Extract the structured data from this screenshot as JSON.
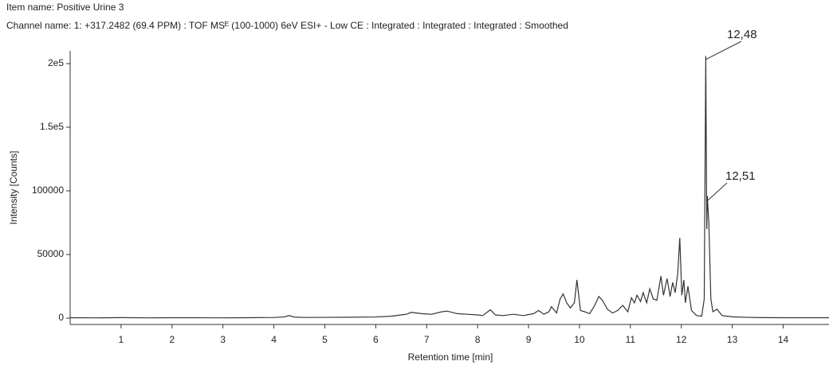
{
  "chart_data": {
    "type": "line",
    "title": "Item name: Positive Urine 3",
    "subtitle": "Channel name: 1: +317.2482 (69.4 PPM) : TOF MSᴱ (100-1000) 6eV ESI+ - Low CE : Integrated : Integrated : Integrated : Smoothed",
    "x_label": "Retention time [min]",
    "y_label": "Intensity [Counts]",
    "xlim": [
      0,
      14.9
    ],
    "ylim": [
      -5000,
      210000
    ],
    "xticks": [
      1,
      2,
      3,
      4,
      5,
      6,
      7,
      8,
      9,
      10,
      11,
      12,
      13,
      14
    ],
    "yticks": [
      0,
      50000,
      100000,
      {
        "value": 150000,
        "label": "1.5e5"
      },
      {
        "value": 200000,
        "label": "2e5"
      }
    ],
    "grid": false,
    "annotations": [
      "12,48",
      "12,51"
    ],
    "x": [
      0,
      0.5,
      1,
      1.5,
      2,
      2.5,
      3,
      3.5,
      4,
      4.2,
      4.3,
      4.4,
      4.6,
      5,
      5.5,
      6,
      6.3,
      6.6,
      6.7,
      6.9,
      7.1,
      7.3,
      7.4,
      7.6,
      7.8,
      8,
      8.1,
      8.25,
      8.35,
      8.5,
      8.7,
      8.9,
      9.1,
      9.2,
      9.3,
      9.4,
      9.45,
      9.55,
      9.62,
      9.68,
      9.75,
      9.82,
      9.9,
      9.95,
      10.02,
      10.1,
      10.2,
      10.3,
      10.38,
      10.45,
      10.55,
      10.65,
      10.75,
      10.85,
      10.95,
      11.02,
      11.08,
      11.13,
      11.2,
      11.25,
      11.32,
      11.38,
      11.45,
      11.52,
      11.6,
      11.65,
      11.72,
      11.78,
      11.83,
      11.88,
      11.93,
      11.97,
      12.01,
      12.05,
      12.08,
      12.13,
      12.2,
      12.3,
      12.4,
      12.45,
      12.48,
      12.5,
      12.51,
      12.54,
      12.58,
      12.62,
      12.7,
      12.8,
      13,
      13.3,
      13.6,
      14,
      14.5,
      14.9
    ],
    "series": [
      {
        "color": "#333333",
        "values": [
          300,
          200,
          400,
          200,
          300,
          300,
          200,
          300,
          500,
          900,
          2000,
          800,
          500,
          600,
          700,
          900,
          1500,
          3000,
          4500,
          3500,
          3000,
          5000,
          5500,
          3500,
          3000,
          2500,
          2000,
          6500,
          2500,
          2000,
          3000,
          2000,
          3500,
          6000,
          3000,
          5000,
          9000,
          4000,
          15000,
          19000,
          12000,
          8000,
          12000,
          30000,
          6000,
          5000,
          3500,
          10000,
          17000,
          14000,
          7000,
          4000,
          6000,
          10000,
          5000,
          16000,
          12000,
          18000,
          13000,
          20000,
          12000,
          23000,
          15000,
          14000,
          33000,
          18000,
          31000,
          17000,
          28000,
          20000,
          35000,
          63000,
          18000,
          30000,
          12000,
          25000,
          6000,
          2000,
          1500,
          15000,
          206000,
          70000,
          96000,
          75000,
          15000,
          5000,
          7000,
          2000,
          1000,
          600,
          400,
          300,
          300,
          300
        ]
      }
    ]
  }
}
